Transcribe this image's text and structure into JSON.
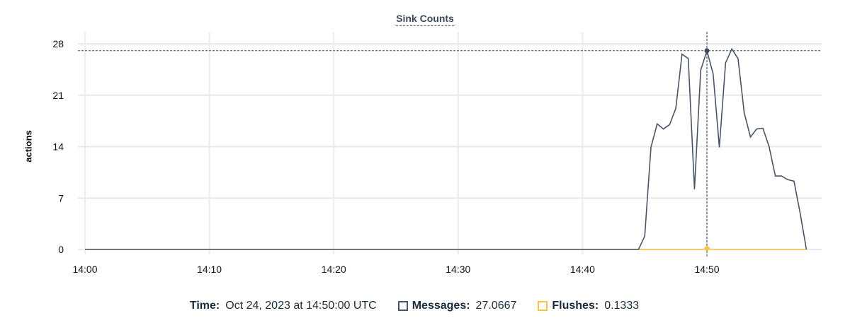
{
  "chart_data": {
    "type": "line",
    "title": "Sink Counts",
    "ylabel": "actions",
    "xlabel": "",
    "ylim": [
      0,
      28
    ],
    "yticks": [
      0,
      7,
      14,
      21,
      28
    ],
    "xticks": [
      "14:00",
      "14:10",
      "14:20",
      "14:30",
      "14:40",
      "14:50"
    ],
    "xlim": [
      "14:00",
      "14:58"
    ],
    "grid": true,
    "series": [
      {
        "name": "Messages",
        "color": "#4a5568",
        "points": [
          [
            "14:00:00",
            0
          ],
          [
            "14:44:30",
            0
          ],
          [
            "14:45:00",
            1.8
          ],
          [
            "14:45:30",
            13.9
          ],
          [
            "14:46:00",
            17.1
          ],
          [
            "14:46:30",
            16.4
          ],
          [
            "14:47:00",
            17.0
          ],
          [
            "14:47:30",
            19.2
          ],
          [
            "14:48:00",
            26.6
          ],
          [
            "14:48:30",
            26.0
          ],
          [
            "14:49:00",
            8.2
          ],
          [
            "14:49:30",
            24.4
          ],
          [
            "14:50:00",
            27.0667
          ],
          [
            "14:50:30",
            23.9
          ],
          [
            "14:51:00",
            13.9
          ],
          [
            "14:51:30",
            25.4
          ],
          [
            "14:52:00",
            27.3
          ],
          [
            "14:52:30",
            26.0
          ],
          [
            "14:53:00",
            18.6
          ],
          [
            "14:53:30",
            15.3
          ],
          [
            "14:54:00",
            16.4
          ],
          [
            "14:54:30",
            16.5
          ],
          [
            "14:55:00",
            14.0
          ],
          [
            "14:55:30",
            10.0
          ],
          [
            "14:56:00",
            10.0
          ],
          [
            "14:56:30",
            9.5
          ],
          [
            "14:57:00",
            9.3
          ],
          [
            "14:57:30",
            4.9
          ],
          [
            "14:58:00",
            0
          ]
        ]
      },
      {
        "name": "Flushes",
        "color": "#f6c343",
        "points": [
          [
            "14:00:00",
            0
          ],
          [
            "14:49:30",
            0
          ],
          [
            "14:50:00",
            0.1333
          ],
          [
            "14:50:30",
            0
          ],
          [
            "14:58:00",
            0
          ]
        ]
      }
    ],
    "crosshair": {
      "time": "14:50:00"
    }
  },
  "legend": {
    "time_label": "Time:",
    "time_value": "Oct 24, 2023 at 14:50:00 UTC",
    "messages_label": "Messages:",
    "messages_value": "27.0667",
    "flushes_label": "Flushes:",
    "flushes_value": "0.1333"
  }
}
